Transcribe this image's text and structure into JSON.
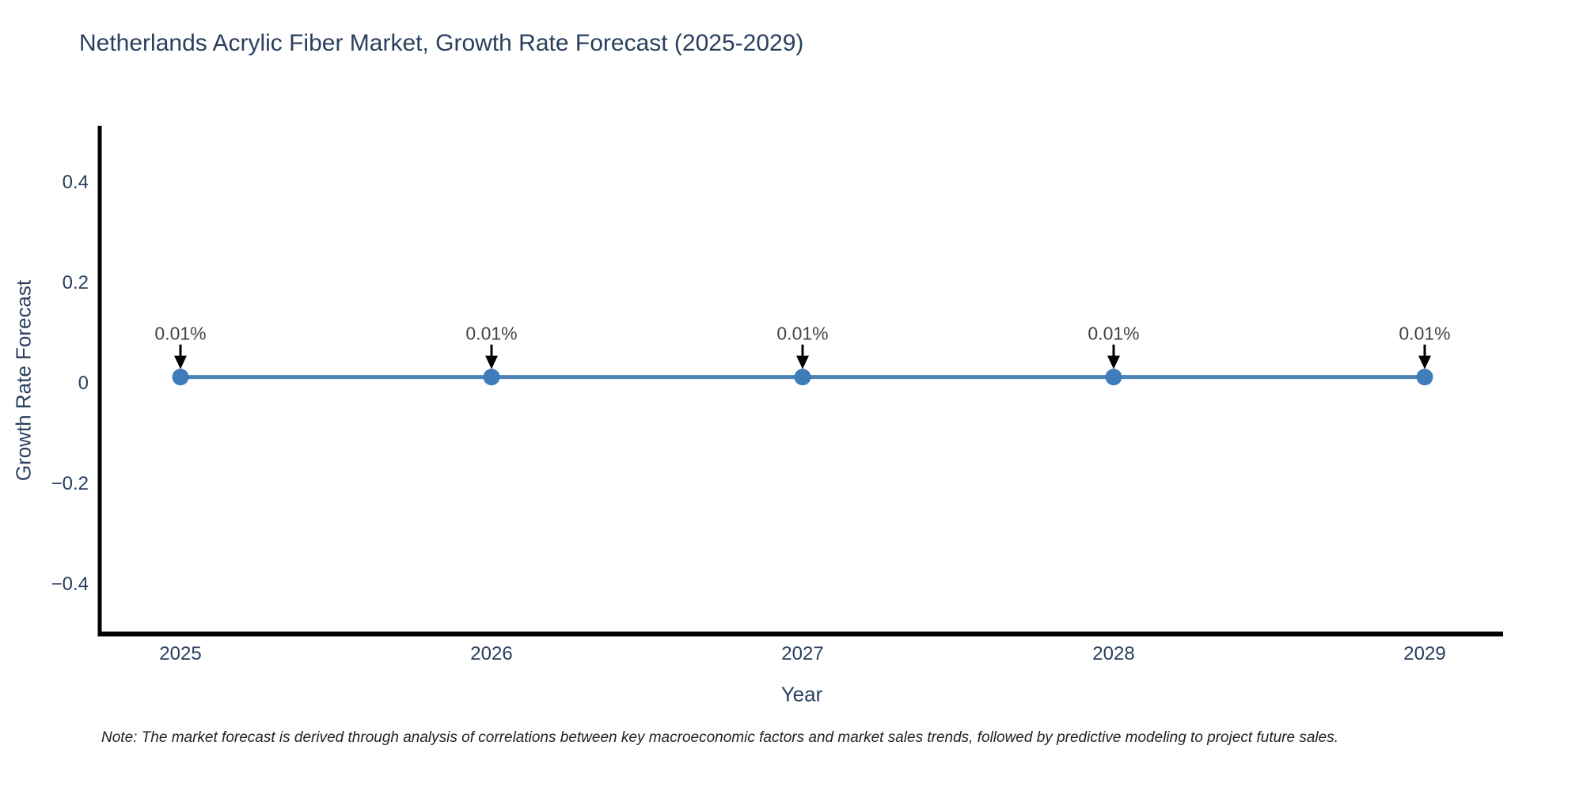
{
  "chart_data": {
    "type": "line",
    "title": "Netherlands Acrylic Fiber Market, Growth Rate Forecast (2025-2029)",
    "xlabel": "Year",
    "ylabel": "Growth Rate Forecast",
    "x": [
      2025,
      2026,
      2027,
      2028,
      2029
    ],
    "xticks": [
      "2025",
      "2026",
      "2027",
      "2028",
      "2029"
    ],
    "series": [
      {
        "name": "Growth Rate Forecast",
        "values": [
          0.01,
          0.01,
          0.01,
          0.01,
          0.01
        ],
        "point_labels": [
          "0.01%",
          "0.01%",
          "0.01%",
          "0.01%",
          "0.01%"
        ]
      }
    ],
    "yticks": {
      "values": [
        0.4,
        0.2,
        0,
        -0.2,
        -0.4
      ],
      "labels": [
        "0.4",
        "0.2",
        "0",
        "−0.2",
        "−0.4"
      ]
    },
    "ylim": [
      -0.505,
      0.51
    ],
    "grid": false,
    "legend": "none",
    "note": "Note: The market forecast is derived through analysis of correlations between key macroeconomic factors and market sales trends, followed by predictive modeling to project future sales.",
    "colors": {
      "line": "#4c83b4",
      "marker": "#3e7cba",
      "axis": "#000000",
      "tick_text": "#2a3f5f",
      "title_text": "#2a3f5f",
      "annotation_text": "#444444",
      "annotation_arrow": "#000000",
      "note_text": "#222222",
      "background": "#ffffff"
    }
  }
}
